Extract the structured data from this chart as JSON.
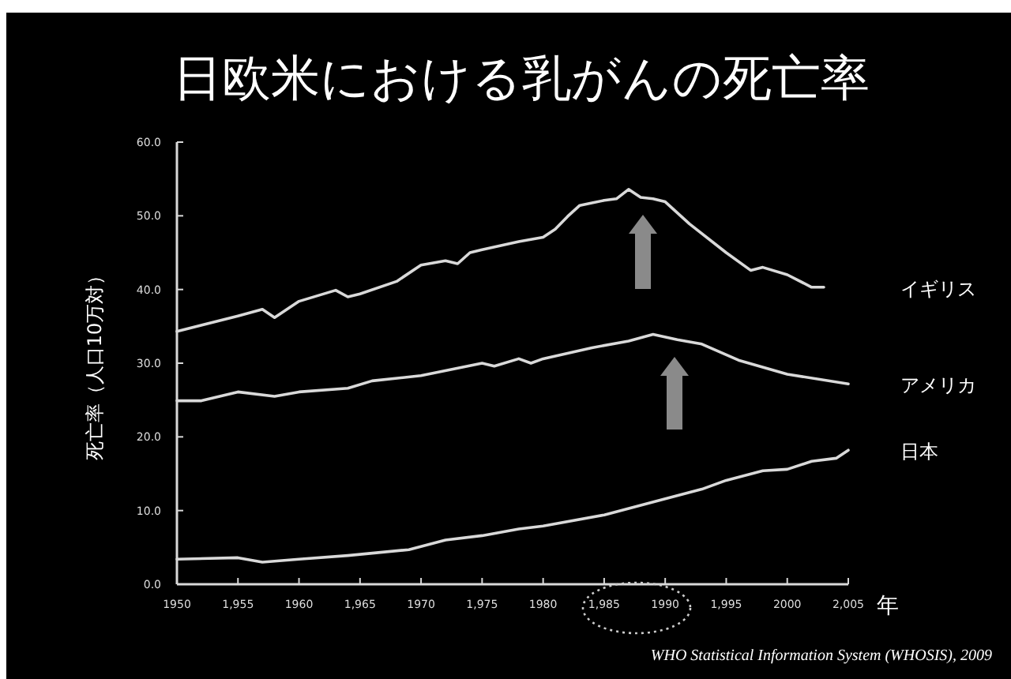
{
  "chart_data": {
    "type": "line",
    "title": "日欧米における乳がんの死亡率",
    "xlabel": "年",
    "ylabel": "死亡率（人口10万対）",
    "annotations": [
      "WHO Statistical Information System (WHOSIS), 2009"
    ],
    "xlim": [
      1950,
      2005
    ],
    "ylim": [
      0,
      60
    ],
    "xticks": [
      1950,
      {
        "value": 1955,
        "label": "1,955"
      },
      1960,
      {
        "value": 1965,
        "label": "1,965"
      },
      1970,
      {
        "value": 1975,
        "label": "1,975"
      },
      1980,
      {
        "value": 1985,
        "label": "1,985"
      },
      1990,
      {
        "value": 1995,
        "label": "1,995"
      },
      2000,
      {
        "value": 2005,
        "label": "2,005"
      }
    ],
    "yticks": [
      {
        "value": 0,
        "label": "0.0"
      },
      {
        "value": 10,
        "label": "10.0"
      },
      {
        "value": 20,
        "label": "20.0"
      },
      {
        "value": 30,
        "label": "30.0"
      },
      {
        "value": 40,
        "label": "40.0"
      },
      {
        "value": 50,
        "label": "50.0"
      },
      {
        "value": 60,
        "label": "60.0"
      }
    ],
    "grid": false,
    "legend": false,
    "marker": "none",
    "line_style": "solid",
    "series": [
      {
        "name": "イギリス",
        "color": "#d9d9d9",
        "x": [
          1950,
          1955,
          1957,
          1958,
          1960,
          1963,
          1964,
          1965,
          1968,
          1970,
          1972,
          1973,
          1974,
          1975,
          1978,
          1980,
          1981,
          1982,
          1983,
          1985,
          1986,
          1987,
          1988,
          1989,
          1990,
          1992,
          1995,
          1997,
          1998,
          2000,
          2002,
          2003
        ],
        "values": [
          34.3,
          36.4,
          37.3,
          36.2,
          38.4,
          39.9,
          39.0,
          39.4,
          41.1,
          43.3,
          43.9,
          43.5,
          45.0,
          45.4,
          46.5,
          47.1,
          48.2,
          49.9,
          51.4,
          52.1,
          52.3,
          53.6,
          52.5,
          52.3,
          51.9,
          48.9,
          45.0,
          42.6,
          43.0,
          42.0,
          40.3,
          40.3
        ]
      },
      {
        "name": "アメリカ",
        "color": "#d9d9d9",
        "x": [
          1950,
          1952,
          1955,
          1958,
          1960,
          1964,
          1966,
          1970,
          1975,
          1976,
          1978,
          1979,
          1980,
          1984,
          1987,
          1989,
          1991,
          1993,
          1996,
          2000,
          2005
        ],
        "values": [
          24.9,
          24.9,
          26.1,
          25.5,
          26.1,
          26.6,
          27.6,
          28.3,
          30.0,
          29.6,
          30.6,
          30.0,
          30.6,
          32.1,
          33.0,
          33.9,
          33.2,
          32.6,
          30.4,
          28.5,
          27.2
        ]
      },
      {
        "name": "日本",
        "color": "#d9d9d9",
        "x": [
          1950,
          1955,
          1957,
          1960,
          1964,
          1969,
          1972,
          1975,
          1978,
          1980,
          1985,
          1990,
          1993,
          1995,
          1998,
          2000,
          2002,
          2004,
          2005
        ],
        "values": [
          3.4,
          3.6,
          3.0,
          3.4,
          3.9,
          4.7,
          6.0,
          6.6,
          7.5,
          7.9,
          9.4,
          11.6,
          12.9,
          14.1,
          15.4,
          15.6,
          16.7,
          17.1,
          18.2
        ]
      }
    ]
  }
}
